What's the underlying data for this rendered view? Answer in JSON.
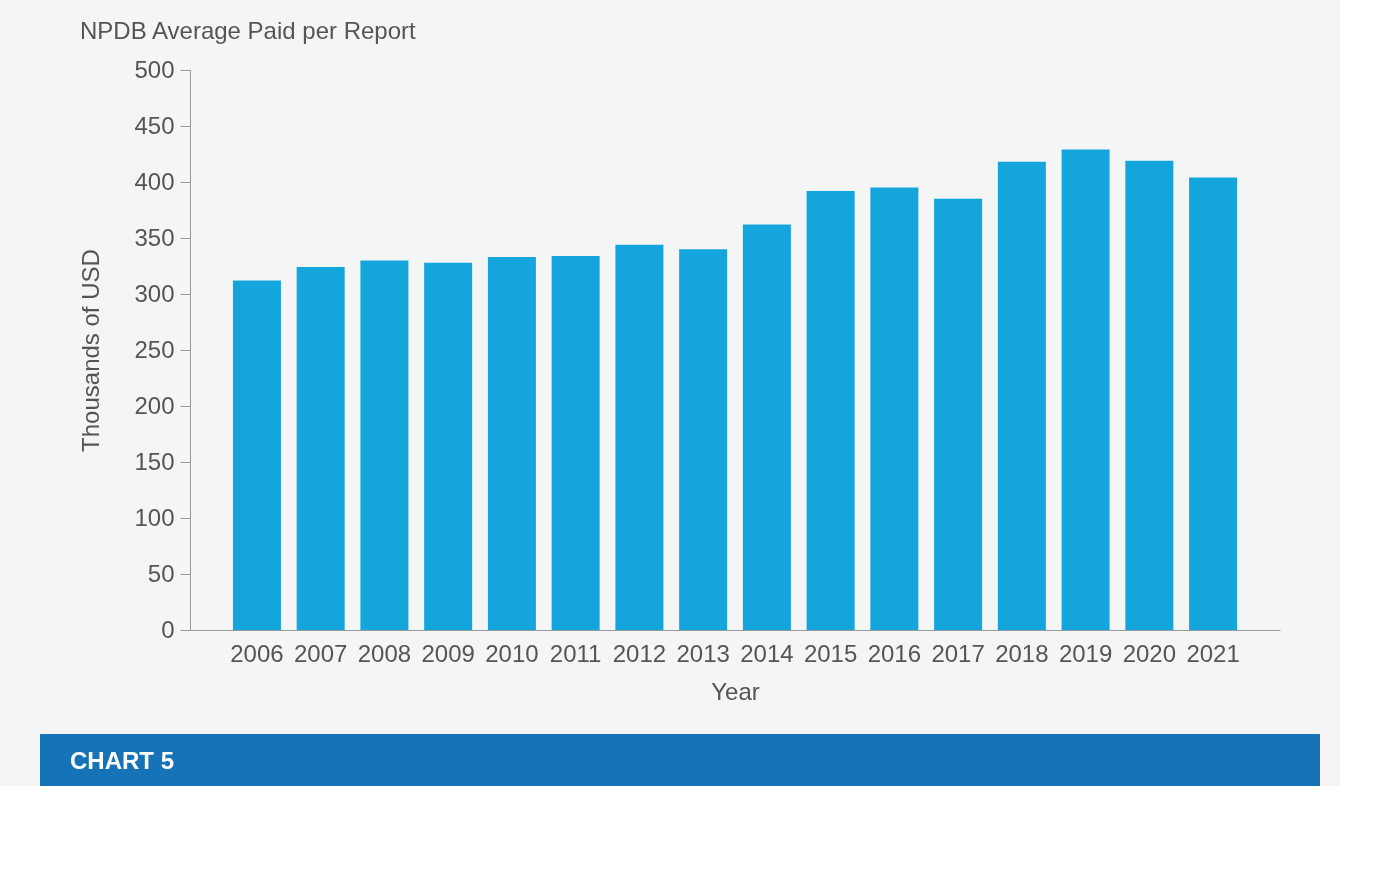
{
  "chart_data": {
    "type": "bar",
    "title": "NPDB Average Paid per Report",
    "xlabel": "Year",
    "ylabel": "Thousands of USD",
    "categories": [
      "2006",
      "2007",
      "2008",
      "2009",
      "2010",
      "2011",
      "2012",
      "2013",
      "2014",
      "2015",
      "2016",
      "2017",
      "2018",
      "2019",
      "2020",
      "2021"
    ],
    "values": [
      312,
      324,
      330,
      328,
      333,
      334,
      344,
      340,
      362,
      392,
      395,
      385,
      418,
      429,
      419,
      404
    ],
    "color": "#14a5dd",
    "ylim": [
      0,
      500
    ],
    "yticks": [
      0,
      50,
      100,
      150,
      200,
      250,
      300,
      350,
      400,
      450,
      500
    ],
    "grid": false,
    "annotations": [
      "CHART 5"
    ]
  }
}
